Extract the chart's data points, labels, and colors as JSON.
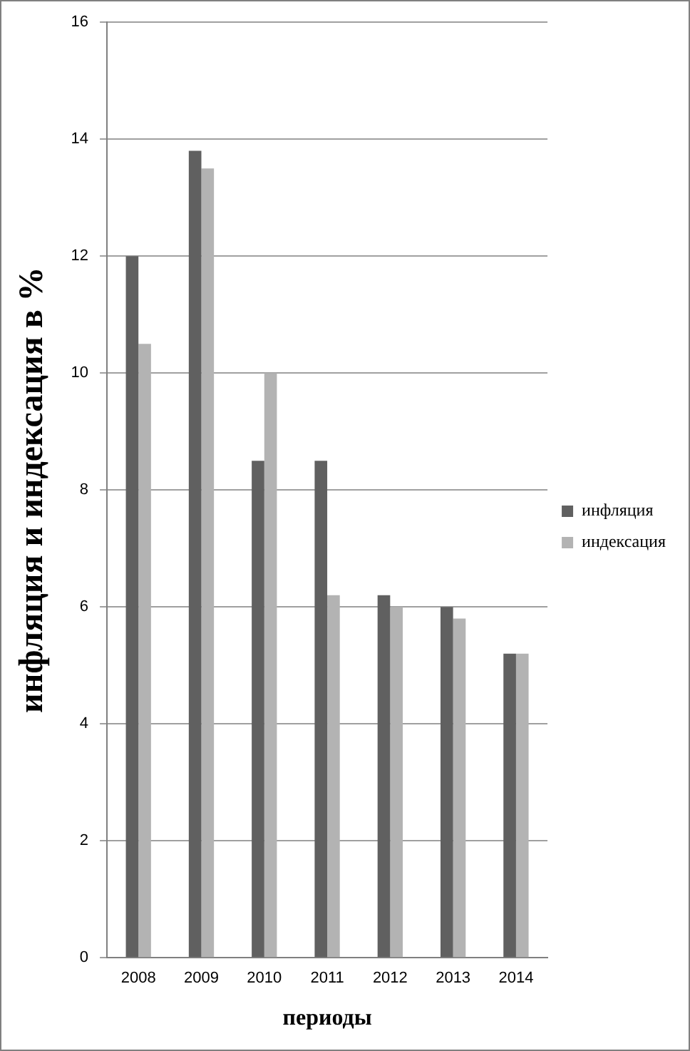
{
  "chart_data": {
    "type": "bar",
    "xlabel": "периоды",
    "ylabel": "инфляция и индексация в %",
    "categories": [
      "2008",
      "2009",
      "2010",
      "2011",
      "2012",
      "2013",
      "2014"
    ],
    "series": [
      {
        "name": "инфляция",
        "color": "#606060",
        "values": [
          12,
          13.8,
          8.5,
          8.5,
          6.2,
          6.0,
          5.2
        ]
      },
      {
        "name": "индексация",
        "color": "#b3b3b3",
        "values": [
          10.5,
          13.5,
          10,
          6.2,
          6.0,
          5.8,
          5.2
        ]
      }
    ],
    "ylim": [
      0,
      16
    ],
    "yticks": [
      0,
      2,
      4,
      6,
      8,
      10,
      12,
      14,
      16
    ],
    "grid": "y",
    "legend": "right"
  }
}
